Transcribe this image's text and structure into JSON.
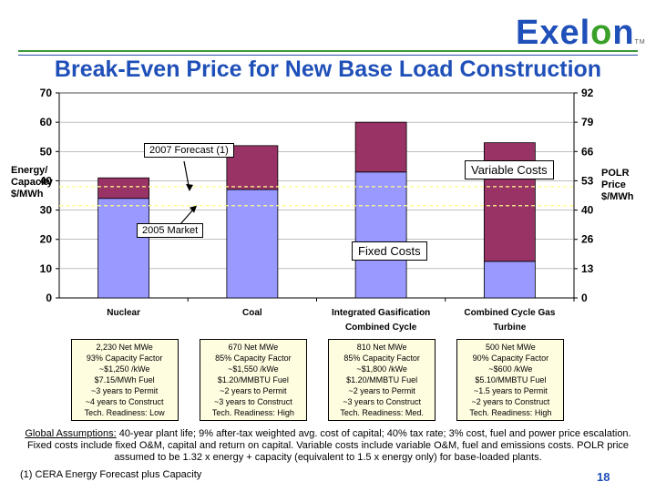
{
  "logo": {
    "text_pre": "Exel",
    "text_o": "o",
    "text_post": "n",
    "tm": "TM"
  },
  "title": "Break-Even Price for New Base Load Construction",
  "colors": {
    "fixed": "#9999ff",
    "variable": "#993366",
    "title": "#1f4fb8"
  },
  "left_axis_label": [
    "Energy/",
    "Capacity",
    "$/MWh"
  ],
  "right_axis_label": [
    "POLR",
    "Price",
    "$/MWh"
  ],
  "callouts": {
    "forecast": "2007 Forecast (1)",
    "market": "2005 Market",
    "variable": "Variable Costs",
    "fixed": "Fixed Costs"
  },
  "chart_data": {
    "type": "bar",
    "stacked": true,
    "categories": [
      "Nuclear",
      "Coal",
      "Integrated Gasification Combined Cycle",
      "Combined Cycle Gas Turbine"
    ],
    "category_lines": [
      [
        "Nuclear"
      ],
      [
        "Coal"
      ],
      [
        "Integrated Gasification",
        "Combined Cycle"
      ],
      [
        "Combined Cycle Gas",
        "Turbine"
      ]
    ],
    "series": [
      {
        "name": "Fixed Costs",
        "values": [
          34,
          37,
          43,
          12.5
        ]
      },
      {
        "name": "Variable Costs",
        "values": [
          7,
          15,
          17,
          40.5
        ]
      }
    ],
    "ylabel": "Energy/ Capacity $/MWh",
    "ylim": [
      0,
      70
    ],
    "yticks": [
      0,
      10,
      20,
      30,
      40,
      50,
      60,
      70
    ],
    "y2label": "POLR Price $/MWh",
    "y2ticks": [
      0,
      13,
      26,
      40,
      53,
      66,
      79,
      92
    ],
    "reference_lines": [
      {
        "name": "2007 Forecast (1)",
        "value": 38
      },
      {
        "name": "2005 Market",
        "value": 31.5
      }
    ],
    "grid": true
  },
  "specs": [
    [
      "2,230 Net MWe",
      "93% Capacity Factor",
      "~$1,250 /kWe",
      "$7.15/MWh Fuel",
      "~3 years to Permit",
      "~4 years to Construct",
      "Tech. Readiness: Low"
    ],
    [
      "670 Net MWe",
      "85% Capacity Factor",
      "~$1,550 /kWe",
      "$1.20/MMBTU Fuel",
      "~2 years to Permit",
      "~3 years to Construct",
      "Tech. Readiness: High"
    ],
    [
      "810 Net MWe",
      "85% Capacity Factor",
      "~$1,800 /kWe",
      "$1.20/MMBTU Fuel",
      "~2 years to Permit",
      "~3 years to Construct",
      "Tech. Readiness: Med."
    ],
    [
      "500 Net MWe",
      "90% Capacity Factor",
      "~$600 /kWe",
      "$5.10/MMBTU Fuel",
      "~1.5 years to Permit",
      "~2 years to Construct",
      "Tech. Readiness: High"
    ]
  ],
  "assumptions": {
    "label": "Global Assumptions:",
    "text": " 40-year plant life; 9% after-tax weighted avg. cost of capital; 40% tax rate; 3% cost, fuel and power price escalation. Fixed costs include fixed O&M, capital and return on capital. Variable costs include variable O&M, fuel and emissions costs. POLR price assumed to be 1.32 x energy + capacity (equivalent to 1.5 x energy only) for base-loaded plants."
  },
  "footnote": "(1) CERA Energy Forecast plus Capacity",
  "page_number": "18"
}
